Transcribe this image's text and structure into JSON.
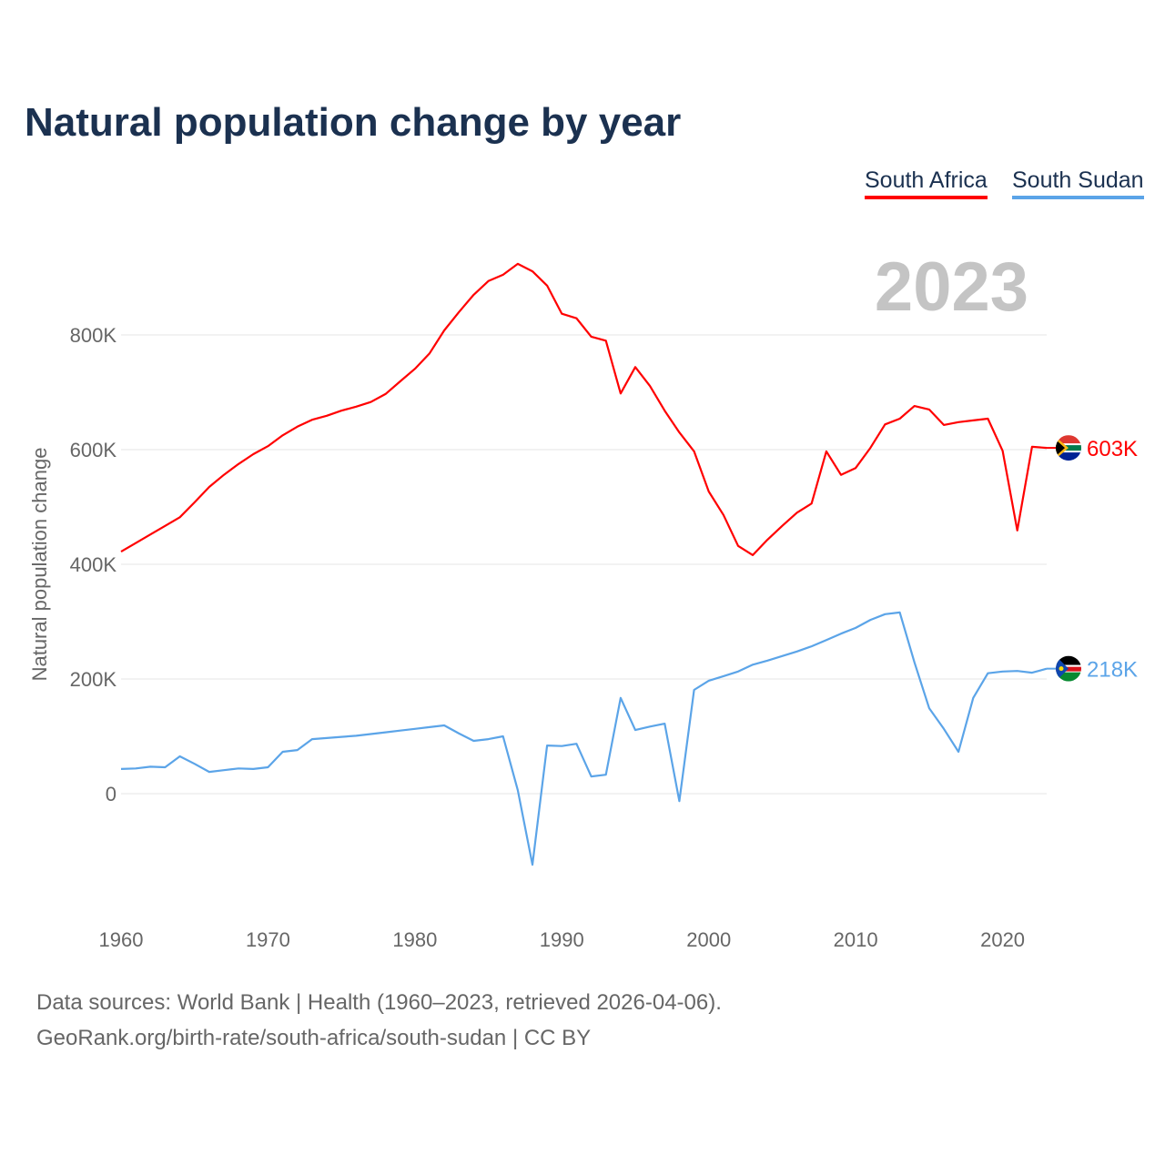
{
  "title": "Natural population change by year",
  "year_label": "2023",
  "footer": {
    "line1": "Data sources: World Bank | Health (1960–2023, retrieved 2026-04-06).",
    "line2": "GeoRank.org/birth-rate/south-africa/south-sudan | CC BY"
  },
  "chart_data": {
    "type": "line",
    "title": "Natural population change by year",
    "ylabel": "Natural population change",
    "xlabel": "",
    "xlim": [
      1960,
      2023
    ],
    "ylim": [
      -180,
      950
    ],
    "y_unit": "thousands",
    "grid": true,
    "legend": "top-right",
    "x_ticks": [
      1960,
      1970,
      1980,
      1990,
      2000,
      2010,
      2020
    ],
    "y_ticks": [
      0,
      200,
      400,
      600,
      800
    ],
    "y_tick_labels": [
      "0",
      "200K",
      "400K",
      "600K",
      "800K"
    ],
    "series": [
      {
        "name": "South Africa",
        "color": "#ff0000",
        "end_label": "603K",
        "flag": "south-africa-flag",
        "values": [
          422,
          437,
          452,
          467,
          482,
          508,
          535,
          556,
          575,
          592,
          606,
          625,
          640,
          652,
          659,
          668,
          675,
          683,
          697,
          719,
          741,
          768,
          808,
          840,
          870,
          894,
          905,
          924,
          911,
          886,
          837,
          829,
          797,
          790,
          698,
          744,
          711,
          668,
          630,
          597,
          527,
          486,
          432,
          416,
          443,
          467,
          490,
          506,
          597,
          556,
          568,
          603,
          644,
          654,
          676,
          670,
          643,
          648,
          651,
          654,
          598,
          459,
          605,
          603
        ]
      },
      {
        "name": "South Sudan",
        "color": "#5ba4e8",
        "end_label": "218K",
        "flag": "south-sudan-flag",
        "values": [
          43,
          44,
          47,
          46,
          65,
          52,
          38,
          41,
          44,
          43,
          46,
          73,
          76,
          95,
          97,
          99,
          101,
          104,
          107,
          110,
          113,
          116,
          119,
          105,
          92,
          95,
          100,
          6,
          -124,
          84,
          83,
          87,
          30,
          33,
          167,
          111,
          117,
          122,
          -13,
          181,
          197,
          205,
          213,
          225,
          232,
          240,
          248,
          257,
          268,
          279,
          289,
          303,
          313,
          316,
          229,
          149,
          113,
          73,
          167,
          210,
          213,
          214,
          211,
          218
        ]
      }
    ]
  }
}
